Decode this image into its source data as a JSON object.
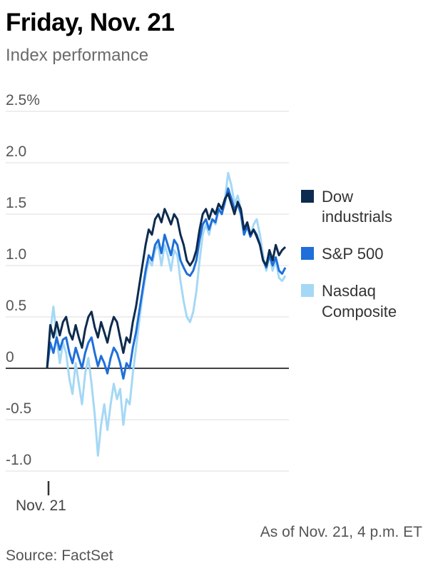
{
  "header": {
    "title": "Friday, Nov. 21",
    "subtitle": "Index performance"
  },
  "footer": {
    "as_of": "As of Nov. 21, 4 p.m. ET",
    "source": "Source: FactSet"
  },
  "chart_data": {
    "type": "line",
    "title": "Index performance",
    "x_axis_label": "Nov. 21",
    "y_unit": "%",
    "ylim": [
      -1.0,
      2.5
    ],
    "yticks": [
      "2.5%",
      "2.0",
      "1.5",
      "1.0",
      "0.5",
      "0",
      "-0.5",
      "-1.0"
    ],
    "ytick_values": [
      2.5,
      2.0,
      1.5,
      1.0,
      0.5,
      0,
      -0.5,
      -1.0
    ],
    "grid": true,
    "legend_position": "right",
    "zero_line_color": "#000000",
    "grid_color": "#dcdcdc",
    "series": [
      {
        "name": "Dow industrials",
        "color": "#0d2b4e",
        "values": [
          0,
          0.42,
          0.3,
          0.45,
          0.32,
          0.45,
          0.5,
          0.35,
          0.28,
          0.42,
          0.3,
          0.2,
          0.38,
          0.5,
          0.55,
          0.4,
          0.3,
          0.45,
          0.35,
          0.25,
          0.4,
          0.5,
          0.45,
          0.3,
          0.15,
          0.3,
          0.25,
          0.45,
          0.6,
          0.8,
          1.0,
          1.2,
          1.35,
          1.3,
          1.45,
          1.5,
          1.42,
          1.55,
          1.48,
          1.4,
          1.5,
          1.45,
          1.3,
          1.2,
          1.05,
          1.0,
          1.05,
          1.15,
          1.35,
          1.5,
          1.55,
          1.45,
          1.55,
          1.5,
          1.6,
          1.55,
          1.65,
          1.7,
          1.6,
          1.5,
          1.62,
          1.55,
          1.35,
          1.42,
          1.3,
          1.35,
          1.28,
          1.2,
          1.05,
          1.0,
          1.15,
          1.05,
          1.2,
          1.1,
          1.15,
          1.18
        ]
      },
      {
        "name": "S&P 500",
        "color": "#1e6fd9",
        "values": [
          0,
          0.25,
          0.15,
          0.3,
          0.18,
          0.28,
          0.3,
          0.15,
          0.05,
          0.2,
          0.1,
          0.0,
          0.15,
          0.25,
          0.3,
          0.15,
          0.02,
          0.12,
          0.05,
          -0.05,
          0.1,
          0.2,
          0.15,
          0.05,
          -0.1,
          0.05,
          0.0,
          0.2,
          0.35,
          0.55,
          0.75,
          0.95,
          1.1,
          1.05,
          1.2,
          1.25,
          1.12,
          1.3,
          1.2,
          1.1,
          1.25,
          1.2,
          1.05,
          0.98,
          0.92,
          0.9,
          0.95,
          1.05,
          1.25,
          1.4,
          1.45,
          1.35,
          1.45,
          1.42,
          1.55,
          1.5,
          1.62,
          1.75,
          1.65,
          1.55,
          1.6,
          1.5,
          1.3,
          1.38,
          1.28,
          1.35,
          1.3,
          1.2,
          1.05,
          0.98,
          1.1,
          1.0,
          1.08,
          0.95,
          0.92,
          0.98
        ]
      },
      {
        "name": "Nasdaq Composite",
        "color": "#a5d8f5",
        "values": [
          0,
          0.35,
          0.6,
          0.3,
          0.05,
          0.25,
          0.15,
          -0.1,
          -0.25,
          0.05,
          -0.15,
          -0.35,
          -0.05,
          0.1,
          -0.15,
          -0.45,
          -0.85,
          -0.55,
          -0.35,
          -0.6,
          -0.35,
          -0.15,
          -0.3,
          -0.2,
          -0.55,
          -0.3,
          -0.35,
          -0.05,
          0.2,
          0.45,
          0.7,
          0.9,
          1.05,
          1.0,
          1.15,
          1.2,
          1.0,
          1.2,
          1.1,
          0.95,
          1.15,
          1.1,
          0.85,
          0.65,
          0.5,
          0.45,
          0.55,
          0.75,
          1.05,
          1.3,
          1.4,
          1.3,
          1.45,
          1.4,
          1.55,
          1.5,
          1.65,
          1.9,
          1.78,
          1.6,
          1.68,
          1.55,
          1.3,
          1.42,
          1.28,
          1.4,
          1.45,
          1.3,
          1.1,
          0.95,
          1.1,
          0.95,
          1.05,
          0.88,
          0.85,
          0.9
        ]
      }
    ]
  }
}
